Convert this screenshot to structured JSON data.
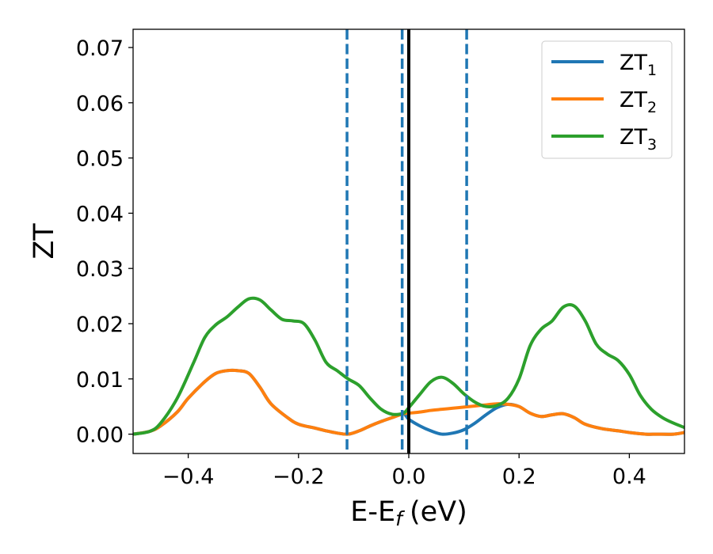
{
  "chart_data": {
    "type": "line",
    "xlabel": "E-E",
    "xlabel_sub": "f",
    "xlabel_unit": "(eV)",
    "ylabel": "ZT",
    "xlim": [
      -0.5,
      0.5
    ],
    "ylim": [
      -0.0035,
      0.0733
    ],
    "xticks": [
      -0.4,
      -0.2,
      0.0,
      0.2,
      0.4
    ],
    "xtick_labels": [
      "−0.4",
      "−0.2",
      "0.0",
      "0.2",
      "0.4"
    ],
    "yticks": [
      0.0,
      0.01,
      0.02,
      0.03,
      0.04,
      0.05,
      0.06,
      0.07
    ],
    "ytick_labels": [
      "0.00",
      "0.01",
      "0.02",
      "0.03",
      "0.04",
      "0.05",
      "0.06",
      "0.07"
    ],
    "grid": false,
    "legend_position": "top-right",
    "vlines": [
      {
        "x": -0.112,
        "style": "dashed",
        "color": "#1f77b4"
      },
      {
        "x": -0.012,
        "style": "dashed",
        "color": "#1f77b4"
      },
      {
        "x": 0.105,
        "style": "dashed",
        "color": "#1f77b4"
      },
      {
        "x": 0.0,
        "style": "solid",
        "color": "#000000"
      }
    ],
    "series": [
      {
        "name": "ZT",
        "sub": "1",
        "color": "#1f77b4",
        "x": [
          -0.5,
          -0.47,
          -0.45,
          -0.42,
          -0.4,
          -0.37,
          -0.35,
          -0.33,
          -0.31,
          -0.29,
          -0.27,
          -0.25,
          -0.22,
          -0.2,
          -0.17,
          -0.15,
          -0.13,
          -0.11,
          -0.09,
          -0.07,
          -0.05,
          -0.03,
          -0.01,
          0.0,
          0.02,
          0.04,
          0.06,
          0.08,
          0.1,
          0.12,
          0.14,
          0.16,
          0.18,
          0.2,
          0.22,
          0.24,
          0.26,
          0.28,
          0.3,
          0.32,
          0.35,
          0.38,
          0.4,
          0.43,
          0.45,
          0.48,
          0.5
        ],
        "y": [
          0.0,
          0.0005,
          0.0015,
          0.004,
          0.0065,
          0.0095,
          0.011,
          0.0115,
          0.0115,
          0.011,
          0.0085,
          0.0055,
          0.003,
          0.0018,
          0.0011,
          0.0006,
          0.0002,
          0.0,
          0.0006,
          0.0015,
          0.0023,
          0.003,
          0.0037,
          0.0027,
          0.0015,
          0.0006,
          0.0,
          0.0002,
          0.0008,
          0.002,
          0.0035,
          0.0048,
          0.0054,
          0.005,
          0.0038,
          0.0032,
          0.0035,
          0.0037,
          0.003,
          0.0018,
          0.001,
          0.0006,
          0.0003,
          0.0,
          0.0,
          0.0,
          0.0003
        ]
      },
      {
        "name": "ZT",
        "sub": "2",
        "color": "#ff7f0e",
        "x": [
          -0.5,
          -0.47,
          -0.45,
          -0.42,
          -0.4,
          -0.37,
          -0.35,
          -0.33,
          -0.31,
          -0.29,
          -0.27,
          -0.25,
          -0.22,
          -0.2,
          -0.17,
          -0.15,
          -0.13,
          -0.11,
          -0.09,
          -0.07,
          -0.05,
          -0.03,
          -0.01,
          0.0,
          0.02,
          0.04,
          0.06,
          0.08,
          0.1,
          0.12,
          0.14,
          0.16,
          0.18,
          0.2,
          0.22,
          0.24,
          0.26,
          0.28,
          0.3,
          0.32,
          0.35,
          0.38,
          0.4,
          0.43,
          0.45,
          0.48,
          0.5
        ],
        "y": [
          0.0,
          0.0005,
          0.0015,
          0.004,
          0.0065,
          0.0095,
          0.011,
          0.0115,
          0.0115,
          0.011,
          0.0085,
          0.0055,
          0.003,
          0.0018,
          0.0011,
          0.0006,
          0.0002,
          0.0,
          0.0006,
          0.0015,
          0.0023,
          0.003,
          0.0037,
          0.0038,
          0.004,
          0.0043,
          0.0045,
          0.0047,
          0.0049,
          0.0051,
          0.0053,
          0.0055,
          0.0054,
          0.005,
          0.0038,
          0.0032,
          0.0035,
          0.0037,
          0.003,
          0.0018,
          0.001,
          0.0006,
          0.0003,
          0.0,
          0.0,
          0.0,
          0.0003
        ]
      },
      {
        "name": "ZT",
        "sub": "3",
        "color": "#2ca02c",
        "x": [
          -0.5,
          -0.47,
          -0.45,
          -0.42,
          -0.39,
          -0.37,
          -0.35,
          -0.33,
          -0.31,
          -0.29,
          -0.27,
          -0.25,
          -0.23,
          -0.21,
          -0.19,
          -0.17,
          -0.15,
          -0.13,
          -0.11,
          -0.09,
          -0.07,
          -0.05,
          -0.03,
          -0.01,
          0.0,
          0.02,
          0.04,
          0.06,
          0.08,
          0.1,
          0.12,
          0.14,
          0.16,
          0.18,
          0.2,
          0.22,
          0.24,
          0.26,
          0.28,
          0.3,
          0.32,
          0.34,
          0.36,
          0.38,
          0.4,
          0.42,
          0.44,
          0.46,
          0.48,
          0.5
        ],
        "y": [
          0.0,
          0.0005,
          0.002,
          0.0065,
          0.013,
          0.0175,
          0.0198,
          0.0212,
          0.023,
          0.0245,
          0.0243,
          0.0225,
          0.0208,
          0.0205,
          0.02,
          0.017,
          0.013,
          0.0115,
          0.01,
          0.0088,
          0.0065,
          0.0045,
          0.0036,
          0.0038,
          0.0048,
          0.0072,
          0.0095,
          0.0103,
          0.0092,
          0.0073,
          0.0058,
          0.005,
          0.0052,
          0.0065,
          0.01,
          0.016,
          0.019,
          0.0205,
          0.023,
          0.0232,
          0.0205,
          0.0163,
          0.0145,
          0.0133,
          0.0108,
          0.007,
          0.0045,
          0.003,
          0.002,
          0.0012
        ]
      }
    ]
  }
}
